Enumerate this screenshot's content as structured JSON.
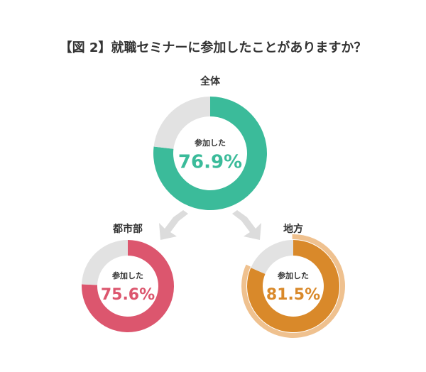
{
  "title": "【図 2】就職セミナーに参加したことがありますか？",
  "chart_data": [
    {
      "type": "donut",
      "title": "全体",
      "categories": [
        "参加した",
        null
      ],
      "values": [
        76.9,
        23.1
      ],
      "value_labels": [
        "76.9%",
        null
      ],
      "colors": [
        "#3bbb9a",
        "#e2e2e2"
      ]
    },
    {
      "type": "donut",
      "title": "都市部",
      "categories": [
        "参加した",
        null
      ],
      "values": [
        75.6,
        24.4
      ],
      "value_labels": [
        "75.6%",
        null
      ],
      "colors": [
        "#dc566e",
        "#e2e2e2"
      ]
    },
    {
      "type": "donut",
      "title": "地方",
      "categories": [
        "参加した",
        null
      ],
      "values": [
        81.5,
        18.5
      ],
      "value_labels": [
        "81.5%",
        null
      ],
      "colors": [
        "#d9892a",
        "#e2e2e2"
      ],
      "highlight_color": "#efc18f"
    }
  ]
}
